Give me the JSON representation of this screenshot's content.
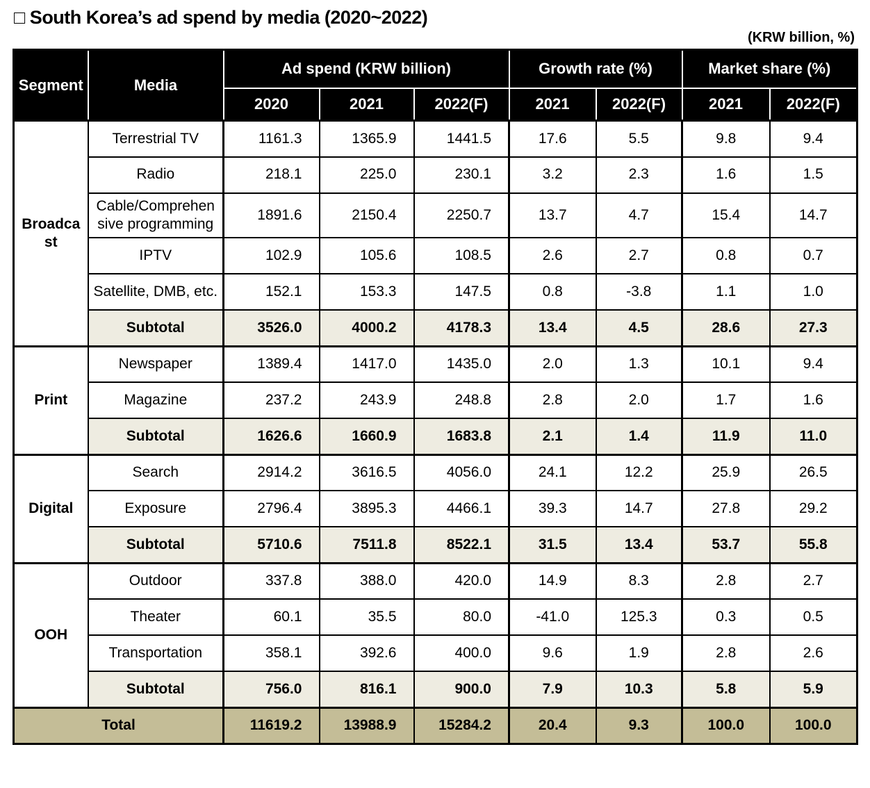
{
  "title": "□ South Korea’s ad spend by media (2020~2022)",
  "unit_note": "(KRW billion, %)",
  "table": {
    "header": {
      "segment": "Segment",
      "media": "Media",
      "groups": [
        {
          "label": "Ad spend (KRW billion)",
          "years": [
            "2020",
            "2021",
            "2022(F)"
          ]
        },
        {
          "label": "Growth rate (%)",
          "years": [
            "2021",
            "2022(F)"
          ]
        },
        {
          "label": "Market share (%)",
          "years": [
            "2021",
            "2022(F)"
          ]
        }
      ]
    },
    "segments": [
      {
        "name": "Broadcast",
        "rows": [
          {
            "media": "Terrestrial TV",
            "values": [
              "1161.3",
              "1365.9",
              "1441.5",
              "17.6",
              "5.5",
              "9.8",
              "9.4"
            ]
          },
          {
            "media": "Radio",
            "values": [
              "218.1",
              "225.0",
              "230.1",
              "3.2",
              "2.3",
              "1.6",
              "1.5"
            ]
          },
          {
            "media": "Cable/Comprehensive programming",
            "values": [
              "1891.6",
              "2150.4",
              "2250.7",
              "13.7",
              "4.7",
              "15.4",
              "14.7"
            ]
          },
          {
            "media": "IPTV",
            "values": [
              "102.9",
              "105.6",
              "108.5",
              "2.6",
              "2.7",
              "0.8",
              "0.7"
            ]
          },
          {
            "media": "Satellite, DMB, etc.",
            "values": [
              "152.1",
              "153.3",
              "147.5",
              "0.8",
              "-3.8",
              "1.1",
              "1.0"
            ]
          }
        ],
        "subtotal": {
          "label": "Subtotal",
          "values": [
            "3526.0",
            "4000.2",
            "4178.3",
            "13.4",
            "4.5",
            "28.6",
            "27.3"
          ]
        }
      },
      {
        "name": "Print",
        "rows": [
          {
            "media": "Newspaper",
            "values": [
              "1389.4",
              "1417.0",
              "1435.0",
              "2.0",
              "1.3",
              "10.1",
              "9.4"
            ]
          },
          {
            "media": "Magazine",
            "values": [
              "237.2",
              "243.9",
              "248.8",
              "2.8",
              "2.0",
              "1.7",
              "1.6"
            ]
          }
        ],
        "subtotal": {
          "label": "Subtotal",
          "values": [
            "1626.6",
            "1660.9",
            "1683.8",
            "2.1",
            "1.4",
            "11.9",
            "11.0"
          ]
        }
      },
      {
        "name": "Digital",
        "rows": [
          {
            "media": "Search",
            "values": [
              "2914.2",
              "3616.5",
              "4056.0",
              "24.1",
              "12.2",
              "25.9",
              "26.5"
            ]
          },
          {
            "media": "Exposure",
            "values": [
              "2796.4",
              "3895.3",
              "4466.1",
              "39.3",
              "14.7",
              "27.8",
              "29.2"
            ]
          }
        ],
        "subtotal": {
          "label": "Subtotal",
          "values": [
            "5710.6",
            "7511.8",
            "8522.1",
            "31.5",
            "13.4",
            "53.7",
            "55.8"
          ]
        }
      },
      {
        "name": "OOH",
        "rows": [
          {
            "media": "Outdoor",
            "values": [
              "337.8",
              "388.0",
              "420.0",
              "14.9",
              "8.3",
              "2.8",
              "2.7"
            ]
          },
          {
            "media": "Theater",
            "values": [
              "60.1",
              "35.5",
              "80.0",
              "-41.0",
              "125.3",
              "0.3",
              "0.5"
            ]
          },
          {
            "media": "Transportation",
            "values": [
              "358.1",
              "392.6",
              "400.0",
              "9.6",
              "1.9",
              "2.8",
              "2.6"
            ]
          }
        ],
        "subtotal": {
          "label": "Subtotal",
          "values": [
            "756.0",
            "816.1",
            "900.0",
            "7.9",
            "10.3",
            "5.8",
            "5.9"
          ]
        }
      }
    ],
    "total": {
      "label": "Total",
      "values": [
        "11619.2",
        "13988.9",
        "15284.2",
        "20.4",
        "9.3",
        "100.0",
        "100.0"
      ]
    }
  },
  "colors": {
    "header_bg": "#000000",
    "header_text": "#ffffff",
    "subtotal_bg": "#eeece1",
    "total_bg": "#c4bd97",
    "border": "#000000"
  }
}
